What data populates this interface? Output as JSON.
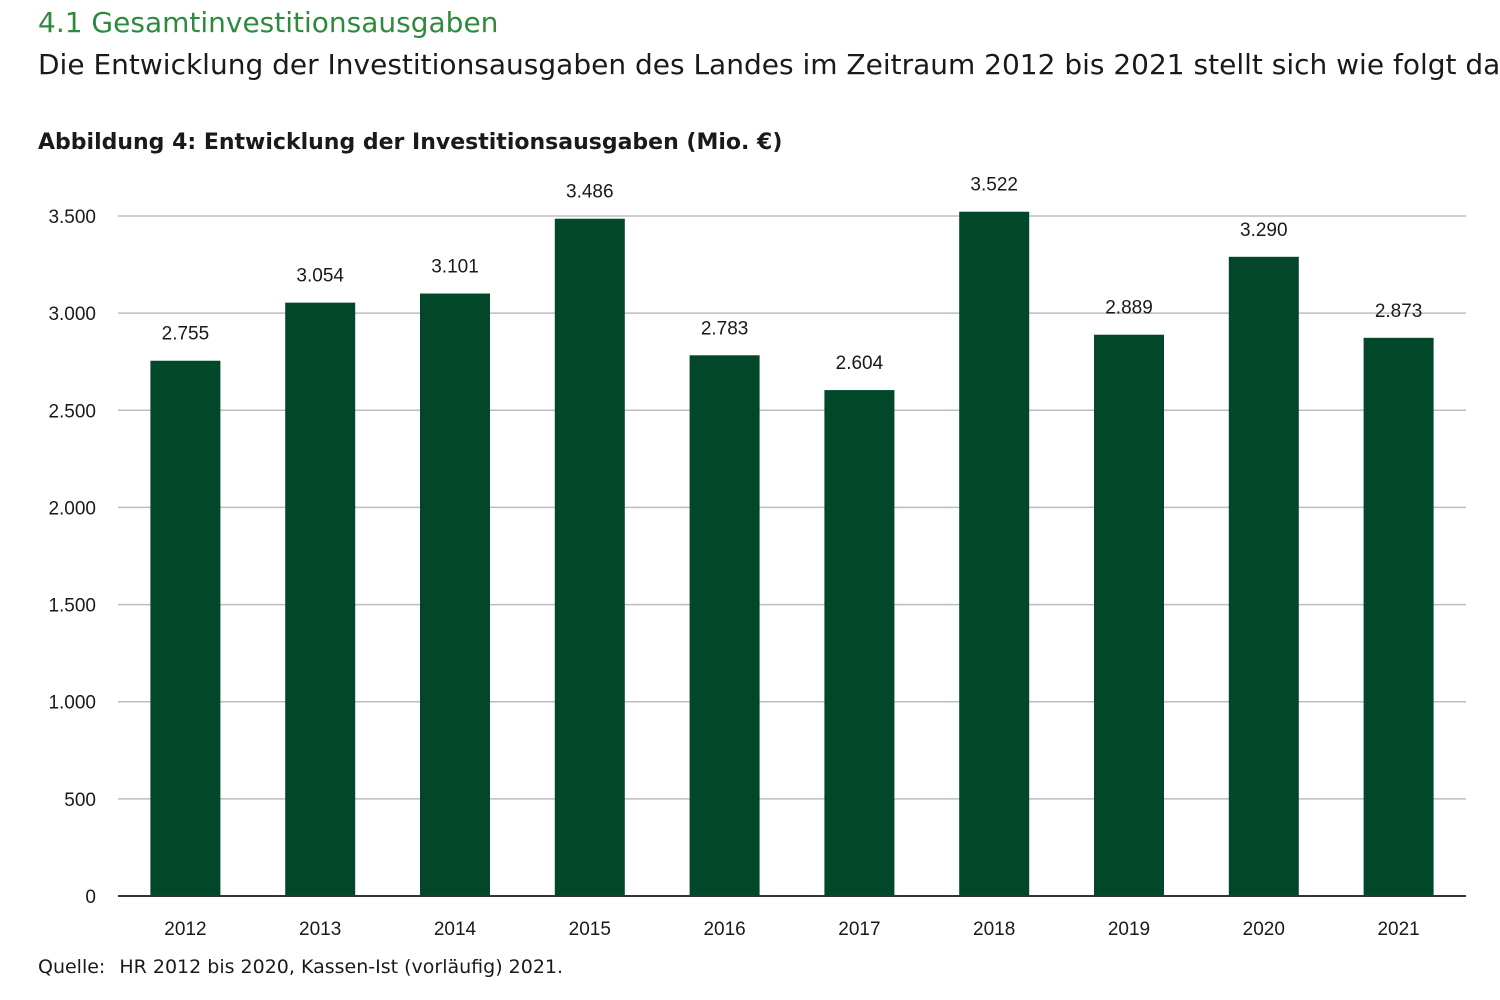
{
  "document": {
    "section_title": "4.1 Gesamtinvestitionsausgaben",
    "intro": "Die Entwicklung der Investitionsausgaben des Landes im Zeitraum 2012 bis 2021 stellt sich wie folgt dar:",
    "figure_title": "Abbildung 4: Entwicklung der Investitionsausgaben (Mio. €)",
    "source_label": "Quelle:",
    "source_text": "HR 2012 bis 2020, Kassen-Ist (vorläufig) 2021."
  },
  "colors": {
    "bar": "#02472a",
    "grid": "#bdbdbd",
    "axis": "#333333",
    "heading": "#2e8b3d"
  },
  "chart_data": {
    "type": "bar",
    "title": "Abbildung 4: Entwicklung der Investitionsausgaben (Mio. €)",
    "xlabel": "",
    "ylabel": "",
    "categories": [
      "2012",
      "2013",
      "2014",
      "2015",
      "2016",
      "2017",
      "2018",
      "2019",
      "2020",
      "2021"
    ],
    "values": [
      2755,
      3054,
      3101,
      3486,
      2783,
      2604,
      3522,
      2889,
      3290,
      2873
    ],
    "value_labels": [
      "2.755",
      "3.054",
      "3.101",
      "3.486",
      "2.783",
      "2.604",
      "3.522",
      "2.889",
      "3.290",
      "2.873"
    ],
    "ylim": [
      0,
      3500
    ],
    "yticks": [
      0,
      500,
      1000,
      1500,
      2000,
      2500,
      3000,
      3500
    ],
    "ytick_labels": [
      "0",
      "500",
      "1.000",
      "1.500",
      "2.000",
      "2.500",
      "3.000",
      "3.500"
    ],
    "grid": true,
    "legend": "none"
  }
}
